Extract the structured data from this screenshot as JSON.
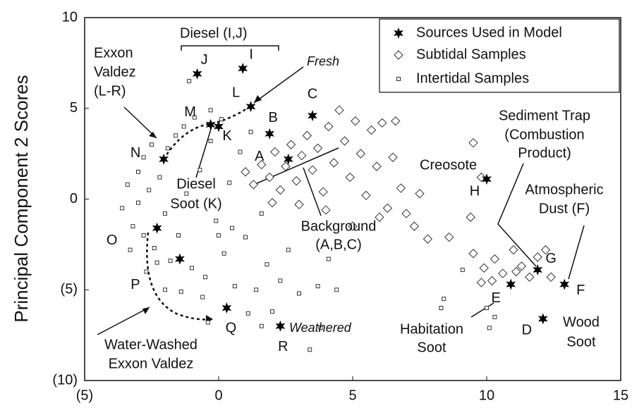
{
  "chart_data": {
    "type": "scatter",
    "y_label": "Principal Component 2 Scores",
    "xlim": [
      -5,
      15
    ],
    "ylim": [
      -10,
      10
    ],
    "xticks": [
      {
        "value": -5,
        "label": "(5)"
      },
      0,
      5,
      10,
      15
    ],
    "yticks": [
      {
        "value": -10,
        "label": "(10)"
      },
      {
        "value": -5,
        "label": "(5)"
      },
      0,
      5,
      10
    ],
    "legend": "upper right",
    "series": [
      {
        "name": "Sources Used in Model",
        "marker": "star",
        "color": "#000000",
        "labels": [
          "A",
          "B",
          "C",
          "D",
          "E",
          "F",
          "G",
          "H",
          "I",
          "J",
          "K",
          "L",
          "M",
          "N",
          "O",
          "P",
          "Q",
          "R"
        ],
        "x": [
          2.6,
          1.9,
          3.5,
          12.1,
          10.9,
          12.9,
          11.9,
          10.0,
          0.9,
          -0.8,
          0.0,
          1.2,
          -0.3,
          -2.05,
          -2.3,
          -1.45,
          0.3,
          2.3
        ],
        "values": [
          2.2,
          3.6,
          4.6,
          -6.6,
          -4.7,
          -4.7,
          -3.9,
          1.1,
          7.2,
          6.9,
          4.0,
          5.1,
          4.1,
          2.2,
          -1.6,
          -3.3,
          -6.0,
          -7.0
        ]
      },
      {
        "name": "Subtidal Samples",
        "marker": "diamond",
        "color": "#ffffff",
        "x": [
          1.0,
          1.3,
          1.6,
          1.9,
          2.1,
          2.3,
          2.5,
          2.7,
          2.9,
          3.1,
          3.3,
          3.5,
          3.7,
          3.9,
          4.1,
          4.3,
          4.5,
          4.7,
          4.9,
          5.1,
          5.3,
          5.5,
          5.7,
          5.9,
          6.1,
          6.3,
          6.5,
          6.8,
          7.0,
          7.3,
          7.5,
          7.8,
          6.6,
          4.0,
          3.0,
          2.0,
          5.0,
          6.0,
          8.6,
          9.5,
          9.4,
          9.8,
          9.5,
          9.9,
          10.3,
          10.6,
          11.0,
          11.3,
          11.6,
          11.9,
          12.2,
          12.4,
          10.2,
          11.1,
          9.8
        ],
        "values": [
          1.5,
          0.8,
          1.9,
          1.2,
          2.6,
          0.5,
          1.8,
          3.0,
          1.0,
          2.4,
          3.5,
          1.6,
          2.8,
          0.4,
          4.0,
          2.0,
          4.9,
          3.2,
          1.2,
          4.3,
          2.5,
          0.2,
          3.8,
          1.8,
          4.2,
          -0.5,
          2.3,
          0.6,
          -0.8,
          -1.5,
          0.3,
          -2.2,
          4.3,
          -0.6,
          -0.3,
          -0.2,
          -1.5,
          -1.0,
          -2.1,
          3.1,
          -1.0,
          1.2,
          -3.0,
          -3.8,
          -3.3,
          -4.1,
          -2.8,
          -3.7,
          -4.3,
          -3.2,
          -2.8,
          -4.3,
          -4.5,
          -4.0,
          -4.6
        ]
      },
      {
        "name": "Intertidal Samples",
        "marker": "square",
        "color": "#ffffff",
        "x": [
          -3.6,
          -3.4,
          -3.2,
          -3.0,
          -3.0,
          -2.8,
          -2.8,
          -2.6,
          -2.5,
          -2.4,
          -2.2,
          -2.0,
          -1.9,
          -1.8,
          -1.6,
          -1.5,
          -1.3,
          -1.2,
          -1.0,
          -0.9,
          -0.7,
          -0.5,
          -0.3,
          -0.1,
          0.1,
          0.2,
          0.4,
          0.6,
          0.8,
          1.0,
          1.2,
          1.4,
          1.6,
          1.8,
          2.0,
          2.3,
          2.6,
          3.0,
          3.4,
          3.7,
          4.1,
          4.4,
          3.8,
          -2.3,
          -3.3,
          -1.4,
          -0.6,
          0.0,
          -1.1,
          -0.3,
          0.5,
          8.4,
          8.3,
          10.0,
          10.3,
          10.1,
          9.1,
          1.6,
          1.1,
          -2.7,
          -2.0,
          -0.4
        ],
        "values": [
          -0.5,
          0.8,
          -1.5,
          1.5,
          -0.2,
          2.3,
          -2.0,
          0.5,
          3.0,
          -2.7,
          1.2,
          -0.8,
          2.8,
          -3.4,
          3.5,
          -2.0,
          4.0,
          0.3,
          -3.8,
          4.5,
          1.6,
          -4.3,
          3.2,
          -1.2,
          4.4,
          -3.0,
          0.9,
          -4.8,
          2.6,
          -2.1,
          3.7,
          -5.0,
          -0.8,
          -3.6,
          -6.2,
          -4.5,
          -2.8,
          -5.2,
          -8.3,
          -4.8,
          -3.3,
          -5.0,
          -7.1,
          -3.5,
          -2.8,
          -5.1,
          -5.4,
          -2.0,
          6.5,
          4.9,
          -1.6,
          -5.5,
          -6.0,
          -6.0,
          -6.5,
          -7.1,
          -3.9,
          -7.0,
          -6.3,
          -4.0,
          -5.0,
          -6.8
        ]
      }
    ],
    "annotations": [
      {
        "lines": [
          "Diesel (I,J)"
        ]
      },
      {
        "lines": [
          "Exxon",
          "Valdez",
          "(L-R)"
        ]
      },
      {
        "lines": [
          "Fresh"
        ],
        "style": "italic"
      },
      {
        "lines": [
          "Diesel",
          "Soot (K)"
        ]
      },
      {
        "lines": [
          "Background",
          "(A,B,C)"
        ]
      },
      {
        "lines": [
          "Creosote"
        ]
      },
      {
        "lines": [
          "Sediment Trap",
          "(Combustion",
          "Product)"
        ]
      },
      {
        "lines": [
          "Atmospheric",
          "Dust (F)"
        ]
      },
      {
        "lines": [
          "Weathered"
        ],
        "style": "italic"
      },
      {
        "lines": [
          "Habitation",
          "Soot"
        ]
      },
      {
        "lines": [
          "Wood",
          "Soot"
        ]
      },
      {
        "lines": [
          "Water-Washed",
          "Exxon Valdez"
        ]
      }
    ]
  }
}
